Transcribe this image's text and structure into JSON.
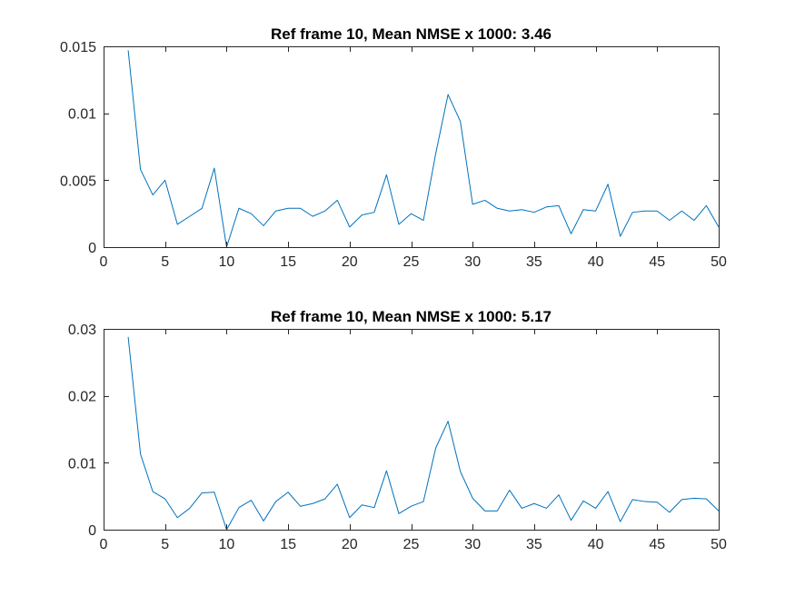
{
  "figure": {
    "background": "#ffffff"
  },
  "chart_data": [
    {
      "type": "line",
      "title": "Ref frame 10, Mean NMSE x 1000: 3.46",
      "xlabel": "",
      "ylabel": "",
      "xlim": [
        0,
        50
      ],
      "ylim": [
        0,
        0.015
      ],
      "xticks": [
        0,
        5,
        10,
        15,
        20,
        25,
        30,
        35,
        40,
        45,
        50
      ],
      "yticks": [
        0,
        0.005,
        0.01,
        0.015
      ],
      "xtick_labels": [
        "0",
        "5",
        "10",
        "15",
        "20",
        "25",
        "30",
        "35",
        "40",
        "45",
        "50"
      ],
      "ytick_labels": [
        "0",
        "0.005",
        "0.01",
        "0.015"
      ],
      "grid": false,
      "box": true,
      "series": [
        {
          "color": "#0072bd",
          "x": [
            2,
            3,
            4,
            5,
            6,
            7,
            8,
            9,
            10,
            11,
            12,
            13,
            14,
            15,
            16,
            17,
            18,
            19,
            20,
            21,
            22,
            23,
            24,
            25,
            26,
            27,
            28,
            29,
            30,
            31,
            32,
            33,
            34,
            35,
            36,
            37,
            38,
            39,
            40,
            41,
            42,
            43,
            44,
            45,
            46,
            47,
            48,
            49,
            50
          ],
          "values": [
            0.0147,
            0.0058,
            0.0039,
            0.005,
            0.0017,
            0.0023,
            0.0029,
            0.0059,
            0.0,
            0.0029,
            0.0025,
            0.0016,
            0.0027,
            0.0029,
            0.0029,
            0.0023,
            0.0027,
            0.0035,
            0.0015,
            0.0024,
            0.0026,
            0.0054,
            0.0017,
            0.0025,
            0.002,
            0.007,
            0.0114,
            0.0094,
            0.0032,
            0.0035,
            0.0029,
            0.0027,
            0.0028,
            0.0026,
            0.003,
            0.0031,
            0.001,
            0.0028,
            0.0027,
            0.0047,
            0.0008,
            0.0026,
            0.0027,
            0.0027,
            0.002,
            0.0027,
            0.002,
            0.0031,
            0.0015
          ]
        }
      ]
    },
    {
      "type": "line",
      "title": "Ref frame 10, Mean NMSE x 1000: 5.17",
      "xlabel": "",
      "ylabel": "",
      "xlim": [
        0,
        50
      ],
      "ylim": [
        0,
        0.03
      ],
      "xticks": [
        0,
        5,
        10,
        15,
        20,
        25,
        30,
        35,
        40,
        45,
        50
      ],
      "yticks": [
        0,
        0.01,
        0.02,
        0.03
      ],
      "xtick_labels": [
        "0",
        "5",
        "10",
        "15",
        "20",
        "25",
        "30",
        "35",
        "40",
        "45",
        "50"
      ],
      "ytick_labels": [
        "0",
        "0.01",
        "0.02",
        "0.03"
      ],
      "grid": false,
      "box": true,
      "series": [
        {
          "color": "#0072bd",
          "x": [
            2,
            3,
            4,
            5,
            6,
            7,
            8,
            9,
            10,
            11,
            12,
            13,
            14,
            15,
            16,
            17,
            18,
            19,
            20,
            21,
            22,
            23,
            24,
            25,
            26,
            27,
            28,
            29,
            30,
            31,
            32,
            33,
            34,
            35,
            36,
            37,
            38,
            39,
            40,
            41,
            42,
            43,
            44,
            45,
            46,
            47,
            48,
            49,
            50
          ],
          "values": [
            0.0288,
            0.0113,
            0.0057,
            0.0046,
            0.0018,
            0.0032,
            0.0055,
            0.0056,
            0.0,
            0.0033,
            0.0044,
            0.0013,
            0.0042,
            0.0056,
            0.0035,
            0.0039,
            0.0046,
            0.0068,
            0.0018,
            0.0037,
            0.0033,
            0.0088,
            0.0024,
            0.0035,
            0.0042,
            0.0122,
            0.0162,
            0.0087,
            0.0047,
            0.0028,
            0.0028,
            0.0059,
            0.0032,
            0.0039,
            0.0032,
            0.0052,
            0.0014,
            0.0043,
            0.0032,
            0.0057,
            0.0012,
            0.0045,
            0.0042,
            0.0041,
            0.0026,
            0.0045,
            0.0047,
            0.0046,
            0.0028
          ]
        }
      ]
    }
  ]
}
